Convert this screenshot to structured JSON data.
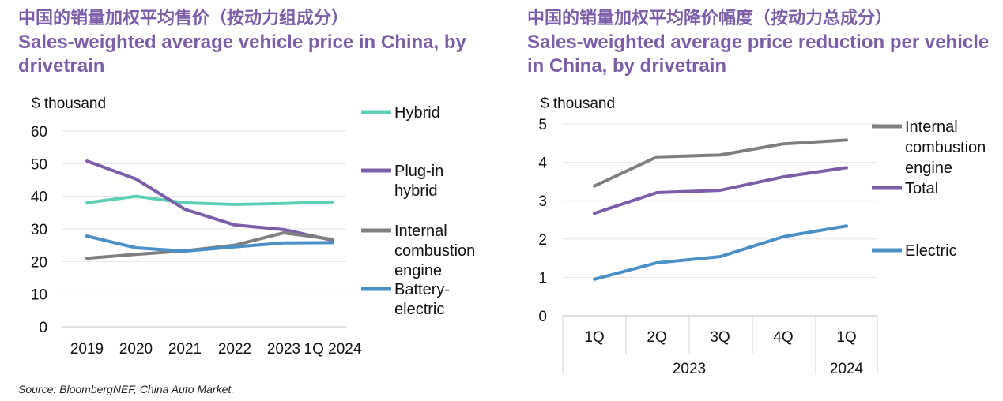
{
  "source": "Source: BloombergNEF, China Auto Market.",
  "chart_data": [
    {
      "type": "line",
      "title_cn": "中国的销量加权平均售价（按动力组成分）",
      "title": "Sales-weighted average vehicle price in China, by drivetrain",
      "ylabel": "$ thousand",
      "ylim": [
        0,
        60
      ],
      "yticks": [
        "0",
        "10",
        "20",
        "30",
        "40",
        "50",
        "60"
      ],
      "x_ticks": [
        "2019",
        "2020",
        "2021",
        "2022",
        "2023",
        "1Q 2024"
      ],
      "grid": true,
      "legend": "right",
      "series": [
        {
          "name": "Hybrid",
          "color": "#5ecfb4",
          "values": [
            38,
            40,
            38,
            37.5,
            37.8,
            38.3
          ]
        },
        {
          "name": "Plug-in hybrid",
          "color": "#7b5ea7",
          "values": [
            50.8,
            45.3,
            36,
            31.2,
            29.8,
            26.5
          ]
        },
        {
          "name": "Internal combustion engine",
          "color": "#7f7f7f",
          "values": [
            21,
            22.2,
            23.3,
            25,
            28.8,
            26.8
          ]
        },
        {
          "name": "Battery-electric",
          "color": "#4a90c8",
          "values": [
            27.8,
            24.2,
            23.2,
            24.5,
            25.7,
            25.8
          ]
        }
      ]
    },
    {
      "type": "line",
      "title_cn": "中国的销量加权平均降价幅度（按动力总成分）",
      "title": "Sales-weighted average price reduction per vehicle in China, by drivetrain",
      "ylabel": "$ thousand",
      "ylim": [
        0,
        5
      ],
      "yticks": [
        "0",
        "1",
        "2",
        "3",
        "4",
        "5"
      ],
      "categories": [
        "1Q",
        "2Q",
        "3Q",
        "4Q",
        "1Q"
      ],
      "year_groups": [
        {
          "label": "2023",
          "span": 4
        },
        {
          "label": "2024",
          "span": 1
        }
      ],
      "grid": true,
      "legend": "right",
      "series": [
        {
          "name": "Internal combustion engine",
          "color": "#7f7f7f",
          "values": [
            3.38,
            4.14,
            4.19,
            4.48,
            4.58
          ]
        },
        {
          "name": "Total",
          "color": "#7b5ea7",
          "values": [
            2.67,
            3.21,
            3.27,
            3.62,
            3.86
          ]
        },
        {
          "name": "Electric",
          "color": "#4a90c8",
          "values": [
            0.95,
            1.38,
            1.54,
            2.06,
            2.34
          ]
        }
      ]
    }
  ]
}
